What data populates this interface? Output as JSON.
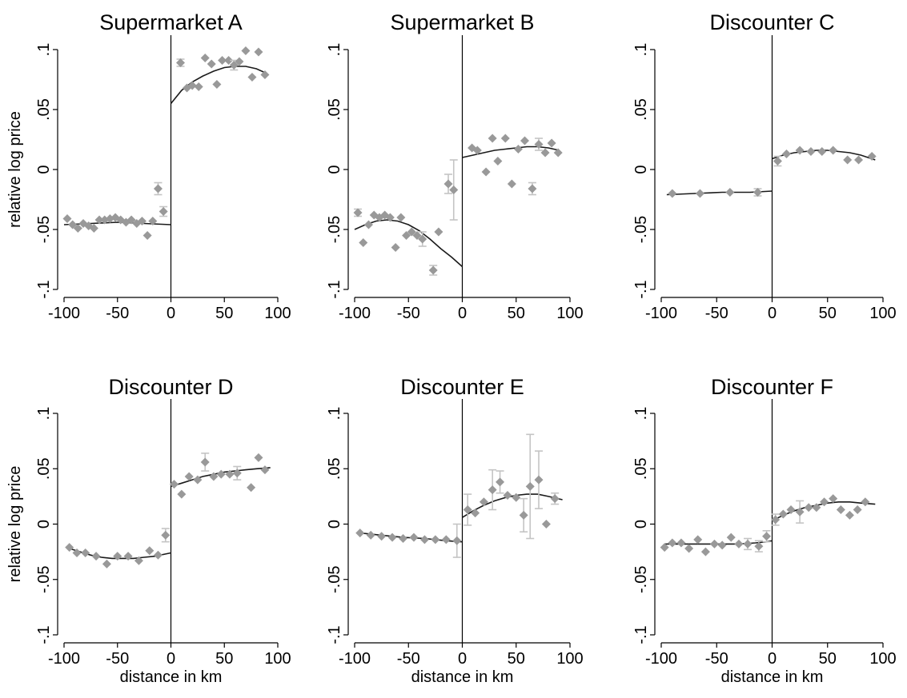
{
  "chart_data": [
    {
      "type": "scatter",
      "title": "Supermarket A",
      "xlabel": "",
      "ylabel": "relative log price",
      "xlim": [
        -100,
        100
      ],
      "ylim": [
        -0.1,
        0.1
      ],
      "xticks": [
        "-100",
        "-50",
        "0",
        "50",
        "100"
      ],
      "yticks": [
        "-.1",
        "-.05",
        "0",
        ".05",
        ".1"
      ],
      "cutoff": 0,
      "points": [
        {
          "x": -97,
          "y": -0.041
        },
        {
          "x": -92,
          "y": -0.046
        },
        {
          "x": -87,
          "y": -0.049
        },
        {
          "x": -82,
          "y": -0.045
        },
        {
          "x": -77,
          "y": -0.047
        },
        {
          "x": -72,
          "y": -0.049
        },
        {
          "x": -67,
          "y": -0.042
        },
        {
          "x": -62,
          "y": -0.042
        },
        {
          "x": -57,
          "y": -0.041
        },
        {
          "x": -52,
          "y": -0.04
        },
        {
          "x": -47,
          "y": -0.042
        },
        {
          "x": -42,
          "y": -0.044
        },
        {
          "x": -37,
          "y": -0.042
        },
        {
          "x": -32,
          "y": -0.045
        },
        {
          "x": -27,
          "y": -0.043
        },
        {
          "x": -22,
          "y": -0.055
        },
        {
          "x": -17,
          "y": -0.043
        },
        {
          "x": -12,
          "y": -0.016,
          "err": 0.005
        },
        {
          "x": -7,
          "y": -0.035,
          "err": 0.004
        },
        {
          "x": 9,
          "y": 0.089,
          "err": 0.003
        },
        {
          "x": 15,
          "y": 0.068
        },
        {
          "x": 20,
          "y": 0.07
        },
        {
          "x": 26,
          "y": 0.069
        },
        {
          "x": 32,
          "y": 0.093
        },
        {
          "x": 38,
          "y": 0.088
        },
        {
          "x": 43,
          "y": 0.071
        },
        {
          "x": 48,
          "y": 0.091
        },
        {
          "x": 54,
          "y": 0.091
        },
        {
          "x": 59,
          "y": 0.087,
          "err": 0.004
        },
        {
          "x": 64,
          "y": 0.09
        },
        {
          "x": 70,
          "y": 0.099
        },
        {
          "x": 76,
          "y": 0.077
        },
        {
          "x": 82,
          "y": 0.098
        },
        {
          "x": 88,
          "y": 0.079
        }
      ],
      "fit_left": [
        {
          "x": -100,
          "y": -0.046
        },
        {
          "x": -75,
          "y": -0.045
        },
        {
          "x": -50,
          "y": -0.044
        },
        {
          "x": -25,
          "y": -0.045
        },
        {
          "x": 0,
          "y": -0.046
        }
      ],
      "fit_right": [
        {
          "x": 0,
          "y": 0.055
        },
        {
          "x": 10,
          "y": 0.066
        },
        {
          "x": 20,
          "y": 0.073
        },
        {
          "x": 30,
          "y": 0.078
        },
        {
          "x": 40,
          "y": 0.082
        },
        {
          "x": 50,
          "y": 0.085
        },
        {
          "x": 60,
          "y": 0.086
        },
        {
          "x": 70,
          "y": 0.086
        },
        {
          "x": 80,
          "y": 0.084
        },
        {
          "x": 90,
          "y": 0.08
        }
      ]
    },
    {
      "type": "scatter",
      "title": "Supermarket B",
      "xlabel": "",
      "ylabel": "",
      "xlim": [
        -100,
        100
      ],
      "ylim": [
        -0.1,
        0.1
      ],
      "xticks": [
        "-100",
        "-50",
        "0",
        "50",
        "100"
      ],
      "yticks": [
        "-.1",
        "-.05",
        "0",
        ".05",
        ".1"
      ],
      "cutoff": 0,
      "points": [
        {
          "x": -97,
          "y": -0.036,
          "err": 0.003
        },
        {
          "x": -92,
          "y": -0.061
        },
        {
          "x": -87,
          "y": -0.046
        },
        {
          "x": -82,
          "y": -0.038
        },
        {
          "x": -77,
          "y": -0.04
        },
        {
          "x": -72,
          "y": -0.038
        },
        {
          "x": -67,
          "y": -0.04
        },
        {
          "x": -62,
          "y": -0.065
        },
        {
          "x": -57,
          "y": -0.04
        },
        {
          "x": -52,
          "y": -0.055
        },
        {
          "x": -47,
          "y": -0.052
        },
        {
          "x": -42,
          "y": -0.055
        },
        {
          "x": -37,
          "y": -0.058,
          "err": 0.006
        },
        {
          "x": -27,
          "y": -0.084,
          "err": 0.004
        },
        {
          "x": -22,
          "y": -0.052
        },
        {
          "x": -13,
          "y": -0.012,
          "err": 0.008
        },
        {
          "x": -8,
          "y": -0.017,
          "err": 0.025
        },
        {
          "x": 9,
          "y": 0.018
        },
        {
          "x": 14,
          "y": 0.016
        },
        {
          "x": 22,
          "y": -0.002
        },
        {
          "x": 28,
          "y": 0.026
        },
        {
          "x": 33,
          "y": 0.007
        },
        {
          "x": 40,
          "y": 0.026
        },
        {
          "x": 46,
          "y": -0.012
        },
        {
          "x": 52,
          "y": 0.017
        },
        {
          "x": 58,
          "y": 0.024
        },
        {
          "x": 65,
          "y": -0.016,
          "err": 0.005
        },
        {
          "x": 71,
          "y": 0.021,
          "err": 0.005
        },
        {
          "x": 77,
          "y": 0.014
        },
        {
          "x": 83,
          "y": 0.022
        },
        {
          "x": 89,
          "y": 0.014
        }
      ],
      "fit_left": [
        {
          "x": -100,
          "y": -0.05
        },
        {
          "x": -90,
          "y": -0.046
        },
        {
          "x": -80,
          "y": -0.043
        },
        {
          "x": -70,
          "y": -0.042
        },
        {
          "x": -60,
          "y": -0.043
        },
        {
          "x": -50,
          "y": -0.046
        },
        {
          "x": -40,
          "y": -0.051
        },
        {
          "x": -30,
          "y": -0.058
        },
        {
          "x": -20,
          "y": -0.066
        },
        {
          "x": -10,
          "y": -0.073
        },
        {
          "x": 0,
          "y": -0.081
        }
      ],
      "fit_right": [
        {
          "x": 0,
          "y": 0.01
        },
        {
          "x": 10,
          "y": 0.012
        },
        {
          "x": 20,
          "y": 0.014
        },
        {
          "x": 30,
          "y": 0.016
        },
        {
          "x": 40,
          "y": 0.017
        },
        {
          "x": 50,
          "y": 0.018
        },
        {
          "x": 60,
          "y": 0.019
        },
        {
          "x": 70,
          "y": 0.019
        },
        {
          "x": 80,
          "y": 0.018
        },
        {
          "x": 90,
          "y": 0.016
        }
      ]
    },
    {
      "type": "scatter",
      "title": "Discounter C",
      "xlabel": "",
      "ylabel": "",
      "xlim": [
        -100,
        100
      ],
      "ylim": [
        -0.1,
        0.1
      ],
      "xticks": [
        "-100",
        "-50",
        "0",
        "50",
        "100"
      ],
      "yticks": [
        "-.1",
        "-.05",
        "0",
        ".05",
        ".1"
      ],
      "cutoff": 0,
      "points": [
        {
          "x": -90,
          "y": -0.02
        },
        {
          "x": -65,
          "y": -0.02
        },
        {
          "x": -38,
          "y": -0.019
        },
        {
          "x": -13,
          "y": -0.019,
          "err": 0.003
        },
        {
          "x": 5,
          "y": 0.007,
          "err": 0.004
        },
        {
          "x": 13,
          "y": 0.013
        },
        {
          "x": 25,
          "y": 0.016
        },
        {
          "x": 35,
          "y": 0.015
        },
        {
          "x": 45,
          "y": 0.015
        },
        {
          "x": 55,
          "y": 0.016
        },
        {
          "x": 68,
          "y": 0.008
        },
        {
          "x": 78,
          "y": 0.008
        },
        {
          "x": 90,
          "y": 0.011
        }
      ],
      "fit_left": [
        {
          "x": -95,
          "y": -0.021
        },
        {
          "x": -70,
          "y": -0.02
        },
        {
          "x": -45,
          "y": -0.019
        },
        {
          "x": -20,
          "y": -0.019
        },
        {
          "x": 0,
          "y": -0.018
        }
      ],
      "fit_right": [
        {
          "x": 0,
          "y": 0.009
        },
        {
          "x": 10,
          "y": 0.012
        },
        {
          "x": 20,
          "y": 0.014
        },
        {
          "x": 30,
          "y": 0.015
        },
        {
          "x": 40,
          "y": 0.016
        },
        {
          "x": 50,
          "y": 0.016
        },
        {
          "x": 60,
          "y": 0.015
        },
        {
          "x": 70,
          "y": 0.014
        },
        {
          "x": 80,
          "y": 0.012
        },
        {
          "x": 93,
          "y": 0.008
        }
      ]
    },
    {
      "type": "scatter",
      "title": "Discounter D",
      "xlabel": "distance in km",
      "ylabel": "relative log price",
      "xlim": [
        -100,
        100
      ],
      "ylim": [
        -0.1,
        0.1
      ],
      "xticks": [
        "-100",
        "-50",
        "0",
        "50",
        "100"
      ],
      "yticks": [
        "-.1",
        "-.05",
        "0",
        ".05",
        ".1"
      ],
      "cutoff": 0,
      "points": [
        {
          "x": -95,
          "y": -0.021
        },
        {
          "x": -88,
          "y": -0.026
        },
        {
          "x": -80,
          "y": -0.026
        },
        {
          "x": -70,
          "y": -0.029
        },
        {
          "x": -60,
          "y": -0.036
        },
        {
          "x": -50,
          "y": -0.029
        },
        {
          "x": -40,
          "y": -0.029
        },
        {
          "x": -30,
          "y": -0.033
        },
        {
          "x": -20,
          "y": -0.024
        },
        {
          "x": -12,
          "y": -0.028
        },
        {
          "x": -5,
          "y": -0.01,
          "err": 0.006
        },
        {
          "x": 3,
          "y": 0.036
        },
        {
          "x": 10,
          "y": 0.027
        },
        {
          "x": 17,
          "y": 0.043
        },
        {
          "x": 25,
          "y": 0.04
        },
        {
          "x": 32,
          "y": 0.056,
          "err": 0.008
        },
        {
          "x": 40,
          "y": 0.043
        },
        {
          "x": 47,
          "y": 0.045
        },
        {
          "x": 55,
          "y": 0.045
        },
        {
          "x": 62,
          "y": 0.046,
          "err": 0.006
        },
        {
          "x": 75,
          "y": 0.033
        },
        {
          "x": 82,
          "y": 0.06
        },
        {
          "x": 88,
          "y": 0.049
        }
      ],
      "fit_left": [
        {
          "x": -95,
          "y": -0.022
        },
        {
          "x": -85,
          "y": -0.025
        },
        {
          "x": -75,
          "y": -0.028
        },
        {
          "x": -65,
          "y": -0.03
        },
        {
          "x": -55,
          "y": -0.031
        },
        {
          "x": -45,
          "y": -0.031
        },
        {
          "x": -35,
          "y": -0.031
        },
        {
          "x": -25,
          "y": -0.03
        },
        {
          "x": -15,
          "y": -0.029
        },
        {
          "x": -5,
          "y": -0.027
        },
        {
          "x": 0,
          "y": -0.026
        }
      ],
      "fit_right": [
        {
          "x": 0,
          "y": 0.034
        },
        {
          "x": 10,
          "y": 0.037
        },
        {
          "x": 20,
          "y": 0.04
        },
        {
          "x": 30,
          "y": 0.043
        },
        {
          "x": 40,
          "y": 0.045
        },
        {
          "x": 50,
          "y": 0.047
        },
        {
          "x": 60,
          "y": 0.048
        },
        {
          "x": 70,
          "y": 0.049
        },
        {
          "x": 80,
          "y": 0.05
        },
        {
          "x": 93,
          "y": 0.051
        }
      ]
    },
    {
      "type": "scatter",
      "title": "Discounter E",
      "xlabel": "distance in km",
      "ylabel": "",
      "xlim": [
        -100,
        100
      ],
      "ylim": [
        -0.1,
        0.1
      ],
      "xticks": [
        "-100",
        "-50",
        "0",
        "50",
        "100"
      ],
      "yticks": [
        "-.1",
        "-.05",
        "0",
        ".05",
        ".1"
      ],
      "cutoff": 0,
      "points": [
        {
          "x": -95,
          "y": -0.008
        },
        {
          "x": -85,
          "y": -0.01
        },
        {
          "x": -75,
          "y": -0.011
        },
        {
          "x": -65,
          "y": -0.012
        },
        {
          "x": -55,
          "y": -0.013
        },
        {
          "x": -45,
          "y": -0.012
        },
        {
          "x": -35,
          "y": -0.014
        },
        {
          "x": -25,
          "y": -0.014
        },
        {
          "x": -15,
          "y": -0.014
        },
        {
          "x": -5,
          "y": -0.015,
          "err": 0.015
        },
        {
          "x": 5,
          "y": 0.013,
          "err": 0.014
        },
        {
          "x": 12,
          "y": 0.01
        },
        {
          "x": 20,
          "y": 0.02
        },
        {
          "x": 28,
          "y": 0.031,
          "err": 0.018
        },
        {
          "x": 35,
          "y": 0.038,
          "err": 0.01
        },
        {
          "x": 42,
          "y": 0.026
        },
        {
          "x": 50,
          "y": 0.024
        },
        {
          "x": 57,
          "y": 0.008,
          "err": 0.015
        },
        {
          "x": 63,
          "y": 0.034,
          "err": 0.047
        },
        {
          "x": 71,
          "y": 0.04,
          "err": 0.026
        },
        {
          "x": 78,
          "y": 0.0
        },
        {
          "x": 86,
          "y": 0.023,
          "err": 0.005
        }
      ],
      "fit_left": [
        {
          "x": -95,
          "y": -0.008
        },
        {
          "x": -75,
          "y": -0.01
        },
        {
          "x": -55,
          "y": -0.012
        },
        {
          "x": -35,
          "y": -0.013
        },
        {
          "x": -15,
          "y": -0.015
        },
        {
          "x": 0,
          "y": -0.016
        }
      ],
      "fit_right": [
        {
          "x": 0,
          "y": 0.006
        },
        {
          "x": 10,
          "y": 0.012
        },
        {
          "x": 20,
          "y": 0.017
        },
        {
          "x": 30,
          "y": 0.021
        },
        {
          "x": 40,
          "y": 0.024
        },
        {
          "x": 50,
          "y": 0.026
        },
        {
          "x": 60,
          "y": 0.027
        },
        {
          "x": 70,
          "y": 0.027
        },
        {
          "x": 80,
          "y": 0.025
        },
        {
          "x": 93,
          "y": 0.022
        }
      ]
    },
    {
      "type": "scatter",
      "title": "Discounter F",
      "xlabel": "distance in km",
      "ylabel": "",
      "xlim": [
        -100,
        100
      ],
      "ylim": [
        -0.1,
        0.1
      ],
      "xticks": [
        "-100",
        "-50",
        "0",
        "50",
        "100"
      ],
      "yticks": [
        "-.1",
        "-.05",
        "0",
        ".05",
        ".1"
      ],
      "cutoff": 0,
      "points": [
        {
          "x": -97,
          "y": -0.021
        },
        {
          "x": -90,
          "y": -0.017
        },
        {
          "x": -82,
          "y": -0.017
        },
        {
          "x": -75,
          "y": -0.022
        },
        {
          "x": -67,
          "y": -0.014
        },
        {
          "x": -60,
          "y": -0.025
        },
        {
          "x": -52,
          "y": -0.018
        },
        {
          "x": -45,
          "y": -0.019
        },
        {
          "x": -37,
          "y": -0.012
        },
        {
          "x": -30,
          "y": -0.018
        },
        {
          "x": -22,
          "y": -0.018,
          "err": 0.005
        },
        {
          "x": -12,
          "y": -0.02,
          "err": 0.005
        },
        {
          "x": -5,
          "y": -0.011,
          "err": 0.005
        },
        {
          "x": 3,
          "y": 0.004,
          "err": 0.005
        },
        {
          "x": 10,
          "y": 0.009
        },
        {
          "x": 17,
          "y": 0.013
        },
        {
          "x": 25,
          "y": 0.011,
          "err": 0.01
        },
        {
          "x": 33,
          "y": 0.015
        },
        {
          "x": 40,
          "y": 0.015
        },
        {
          "x": 47,
          "y": 0.02
        },
        {
          "x": 55,
          "y": 0.023
        },
        {
          "x": 62,
          "y": 0.013
        },
        {
          "x": 70,
          "y": 0.008
        },
        {
          "x": 77,
          "y": 0.013
        },
        {
          "x": 84,
          "y": 0.02
        }
      ],
      "fit_left": [
        {
          "x": -97,
          "y": -0.018
        },
        {
          "x": -75,
          "y": -0.018
        },
        {
          "x": -50,
          "y": -0.018
        },
        {
          "x": -30,
          "y": -0.018
        },
        {
          "x": -15,
          "y": -0.017
        },
        {
          "x": -5,
          "y": -0.016
        },
        {
          "x": 0,
          "y": -0.015
        }
      ],
      "fit_right": [
        {
          "x": 0,
          "y": 0.003
        },
        {
          "x": 10,
          "y": 0.008
        },
        {
          "x": 20,
          "y": 0.012
        },
        {
          "x": 30,
          "y": 0.015
        },
        {
          "x": 40,
          "y": 0.017
        },
        {
          "x": 50,
          "y": 0.019
        },
        {
          "x": 60,
          "y": 0.02
        },
        {
          "x": 70,
          "y": 0.02
        },
        {
          "x": 80,
          "y": 0.019
        },
        {
          "x": 93,
          "y": 0.018
        }
      ]
    }
  ]
}
